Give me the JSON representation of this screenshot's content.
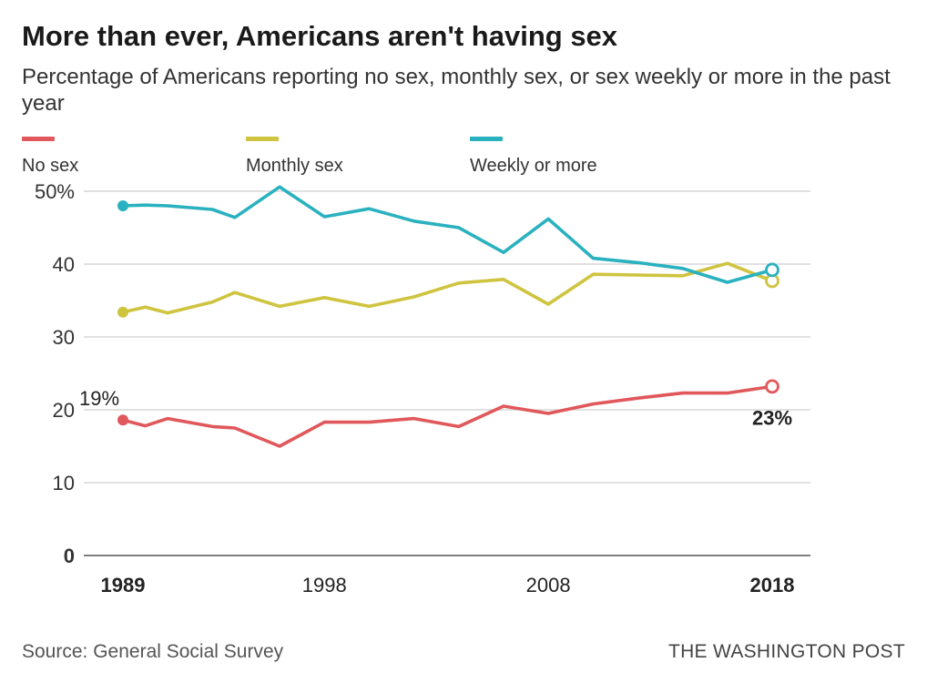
{
  "header": {
    "title": "More than ever, Americans aren't having sex",
    "subtitle": "Percentage of Americans reporting no sex, monthly sex, or sex weekly or more in the past year"
  },
  "legend": [
    {
      "label": "No sex",
      "color": "#e0585b"
    },
    {
      "label": "Monthly sex",
      "color": "#cec43f"
    },
    {
      "label": "Weekly or more",
      "color": "#2ab1bf"
    }
  ],
  "footer": {
    "source": "Source: General Social Survey",
    "credit": "THE WASHINGTON POST"
  },
  "chart_data": {
    "type": "line",
    "title": "More than ever, Americans aren't having sex",
    "subtitle": "Percentage of Americans reporting no sex, monthly sex, or sex weekly or more in the past year",
    "xlabel": "",
    "ylabel": "",
    "xlim": [
      1989,
      2018
    ],
    "ylim": [
      0,
      50
    ],
    "y_ticks": [
      0,
      10,
      20,
      30,
      40,
      50
    ],
    "y_tick_labels": [
      "0",
      "10",
      "20",
      "30",
      "40",
      "50%"
    ],
    "y_tick_bold": [
      true,
      false,
      false,
      false,
      false,
      false
    ],
    "x_ticks": [
      1989,
      1998,
      2008,
      2018
    ],
    "x_tick_labels": [
      "1989",
      "1998",
      "2008",
      "2018"
    ],
    "x_tick_bold": [
      true,
      false,
      false,
      true
    ],
    "grid": "horizontal",
    "legend_position": "top",
    "x": [
      1989,
      1990,
      1991,
      1993,
      1994,
      1996,
      1998,
      2000,
      2002,
      2004,
      2006,
      2008,
      2010,
      2012,
      2014,
      2016,
      2018
    ],
    "series": [
      {
        "name": "No sex",
        "color": "#e0585b",
        "values": [
          18.6,
          17.8,
          18.8,
          17.7,
          17.5,
          15.0,
          18.3,
          18.3,
          18.8,
          17.7,
          20.5,
          19.5,
          20.8,
          21.6,
          22.3,
          22.3,
          23.2
        ]
      },
      {
        "name": "Monthly sex",
        "color": "#cec43f",
        "values": [
          33.4,
          34.1,
          33.3,
          34.8,
          36.1,
          34.2,
          35.4,
          34.2,
          35.5,
          37.4,
          37.9,
          34.5,
          38.6,
          38.5,
          38.4,
          40.1,
          37.7
        ]
      },
      {
        "name": "Weekly or more",
        "color": "#2ab1bf",
        "values": [
          48.0,
          48.1,
          48.0,
          47.5,
          46.4,
          50.6,
          46.5,
          47.6,
          45.9,
          45.0,
          41.6,
          46.2,
          40.8,
          40.2,
          39.4,
          37.5,
          39.2
        ]
      }
    ],
    "annotations": [
      {
        "text": "19%",
        "series": 0,
        "x": 1989,
        "position": "above",
        "bold": false
      },
      {
        "text": "23%",
        "series": 0,
        "x": 2018,
        "position": "below",
        "bold": true
      }
    ]
  }
}
